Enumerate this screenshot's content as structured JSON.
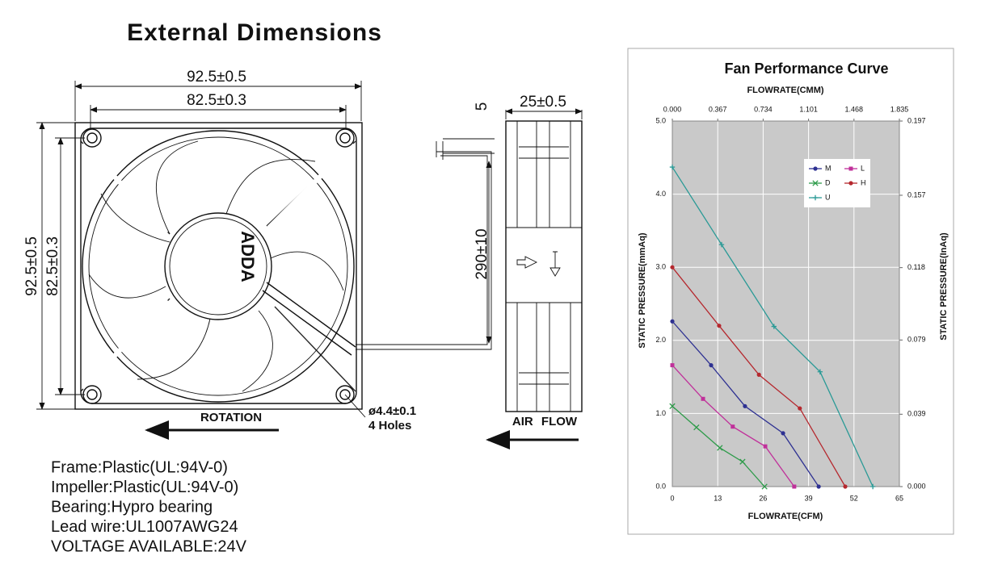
{
  "title": "External Dimensions",
  "drawing": {
    "front_width": "92.5±0.5",
    "front_hole_spacing": "82.5±0.3",
    "front_height": "92.5±0.5",
    "front_hole_spacing_v": "82.5±0.3",
    "brand": "ADDA",
    "hole_size": "ø4.4±0.1",
    "hole_count": "4 Holes",
    "rotation": "ROTATION",
    "lead_offset": "5",
    "depth": "25±0.5",
    "lead_length": "290±10",
    "air_flow": "AIR FLOW"
  },
  "specs": [
    "Frame:Plastic(UL:94V-0)",
    "Impeller:Plastic(UL:94V-0)",
    "Bearing:Hypro bearing",
    "Lead wire:UL1007AWG24",
    "VOLTAGE AVAILABLE:24V"
  ],
  "chart_data": {
    "type": "line",
    "title": "Fan Performance Curve",
    "xlabel": "FLOWRATE(CFM)",
    "x2label": "FLOWRATE(CMM)",
    "ylabel": "STATIC PRESSURE(mmAq)",
    "y2label": "STATIC PRESSURE(InAq)",
    "xlim": [
      0,
      65
    ],
    "xticks": [
      0,
      13,
      26,
      39,
      52,
      65
    ],
    "x2lim": [
      0,
      1.835
    ],
    "x2ticks": [
      {
        "value": 0,
        "label": "0.000"
      },
      {
        "value": 0.367,
        "label": "0.367"
      },
      {
        "value": 0.734,
        "label": "0.734"
      },
      {
        "value": 1.101,
        "label": "1.101"
      },
      {
        "value": 1.468,
        "label": "1.468"
      },
      {
        "value": 1.835,
        "label": "1.835"
      }
    ],
    "ylim": [
      0,
      5
    ],
    "yticks": [
      {
        "value": 0,
        "label": "0.0"
      },
      {
        "value": 1,
        "label": "1.0"
      },
      {
        "value": 2,
        "label": "2.0"
      },
      {
        "value": 3,
        "label": "3.0"
      },
      {
        "value": 4,
        "label": "4.0"
      },
      {
        "value": 5,
        "label": "5.0"
      }
    ],
    "y2lim": [
      0,
      0.197
    ],
    "y2ticks": [
      {
        "value": 0,
        "label": "0.000"
      },
      {
        "value": 0.039,
        "label": "0.039"
      },
      {
        "value": 0.079,
        "label": "0.079"
      },
      {
        "value": 0.118,
        "label": "0.118"
      },
      {
        "value": 0.157,
        "label": "0.157"
      },
      {
        "value": 0.197,
        "label": "0.197"
      }
    ],
    "grid": true,
    "legend": "upper right",
    "series": [
      {
        "name": "M",
        "color": "#2e3192",
        "marker": "circle",
        "x": [
          0,
          11.1,
          20.8,
          31.7,
          41.9
        ],
        "values": [
          2.26,
          1.66,
          1.1,
          0.73,
          0
        ]
      },
      {
        "name": "L",
        "color": "#c0309a",
        "marker": "square",
        "x": [
          0,
          8.8,
          17.3,
          26.6,
          34.9
        ],
        "values": [
          1.66,
          1.2,
          0.82,
          0.55,
          0
        ]
      },
      {
        "name": "D",
        "color": "#2e9b4a",
        "marker": "x",
        "x": [
          0,
          6.9,
          13.6,
          20.1,
          26.4
        ],
        "values": [
          1.1,
          0.81,
          0.53,
          0.34,
          0
        ]
      },
      {
        "name": "H",
        "color": "#b5282e",
        "marker": "circle",
        "x": [
          0,
          13.4,
          24.8,
          36.5,
          49.5
        ],
        "values": [
          3.0,
          2.2,
          1.53,
          1.07,
          0
        ]
      },
      {
        "name": "U",
        "color": "#2a9a96",
        "marker": "plus",
        "x": [
          0,
          14.1,
          29.1,
          42.3,
          57.4
        ],
        "values": [
          4.37,
          3.31,
          2.19,
          1.57,
          0
        ]
      }
    ]
  }
}
